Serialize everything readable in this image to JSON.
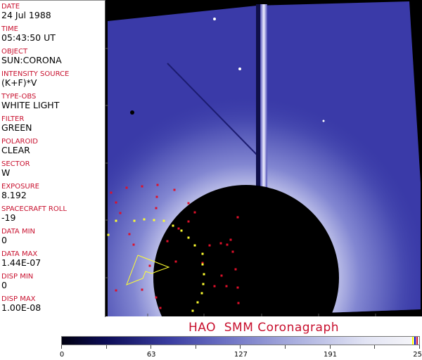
{
  "header": {
    "fields": [
      {
        "label": "DATE",
        "value": "24 Jul 1988"
      },
      {
        "label": "TIME",
        "value": "05:43:50 UT"
      },
      {
        "label": "OBJECT",
        "value": "SUN:CORONA"
      },
      {
        "label": "INTENSITY SOURCE",
        "value": "(K+F)*V"
      },
      {
        "label": "TYPE-OBS",
        "value": "WHITE LIGHT"
      },
      {
        "label": "FILTER",
        "value": "GREEN"
      },
      {
        "label": "POLAROID",
        "value": "CLEAR"
      },
      {
        "label": "SECTOR",
        "value": "W"
      },
      {
        "label": "EXPOSURE",
        "value": "8.192"
      },
      {
        "label": "SPACECRAFT ROLL",
        "value": "-19"
      },
      {
        "label": "DATA MIN",
        "value": "0"
      },
      {
        "label": "DATA MAX",
        "value": "1.44E-07"
      },
      {
        "label": "DISP MIN",
        "value": "0"
      },
      {
        "label": "DISP MAX",
        "value": "1.00E-08"
      }
    ]
  },
  "title": "HAO  SMM Coronagraph",
  "colorbar": {
    "tick_labels": [
      "0",
      "63",
      "127",
      "191",
      "255"
    ],
    "colors": {
      "low": "#000010",
      "mid": "#6a6fc2",
      "high": "#f4f4f8",
      "marker1": "#ffff00",
      "marker2": "#0000c0",
      "marker3": "#c8102e"
    }
  },
  "colors": {
    "label_red": "#c8102e",
    "image_blue": "#3a3aa8",
    "overlay_red": "#e0102a",
    "overlay_yellow": "#ffff30"
  }
}
